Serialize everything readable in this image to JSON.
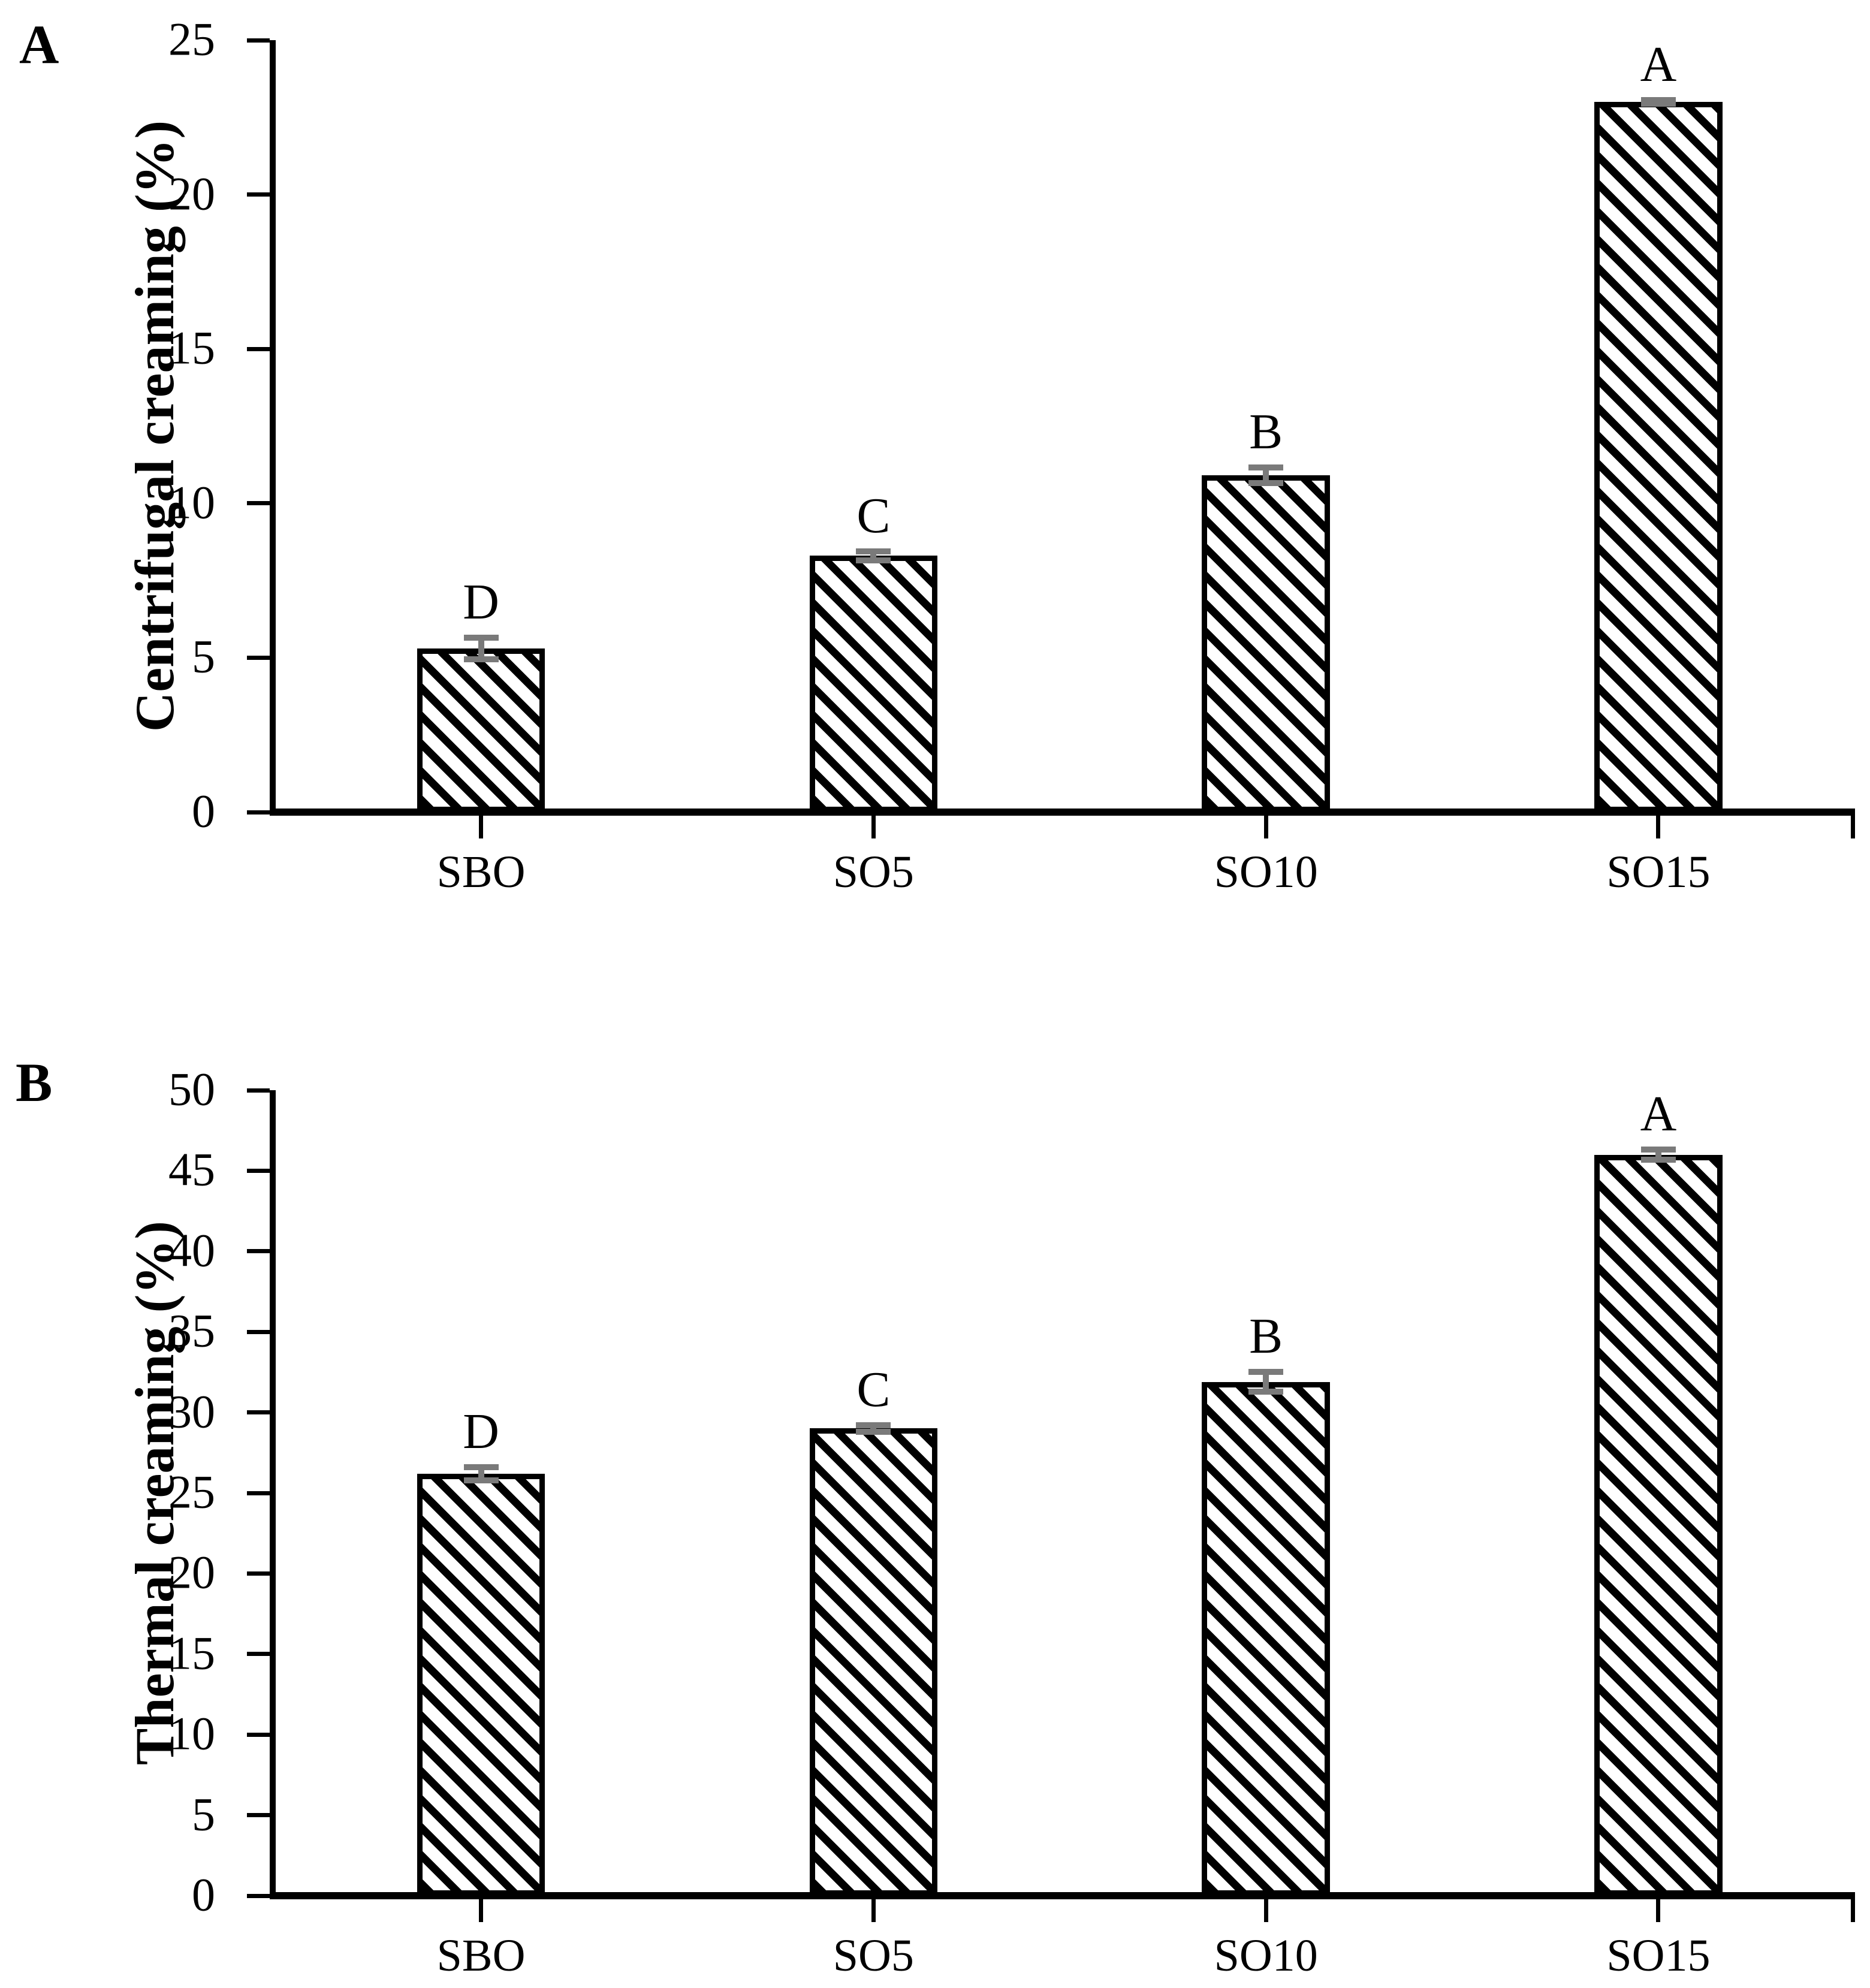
{
  "figure": {
    "background": "#ffffff",
    "panel_labels": [
      "A",
      "B"
    ]
  },
  "colors": {
    "axis": "#000000",
    "bar_outline": "#000000",
    "bar_hatch": "#000000",
    "error_bar": "#7a7a7a",
    "text": "#000000"
  },
  "chart_data": [
    {
      "type": "bar",
      "panel_label": "A",
      "title": "",
      "xlabel": "",
      "ylabel": "Centrifugal creaming (%)",
      "categories": [
        "SBO",
        "SO5",
        "SO10",
        "SO15"
      ],
      "values": [
        5.3,
        8.3,
        10.9,
        23.0
      ],
      "errors": [
        0.45,
        0.25,
        0.35,
        0.15
      ],
      "sig_letters": [
        "D",
        "C",
        "B",
        "A"
      ],
      "ylim": [
        0,
        25
      ],
      "ytick_step": 5,
      "yticks": [
        0,
        5,
        10,
        15,
        20,
        25
      ],
      "grid": false,
      "legend": "none",
      "bar_style": "diagonal-hatch"
    },
    {
      "type": "bar",
      "panel_label": "B",
      "title": "",
      "xlabel": "",
      "ylabel": "Thermal creaming (%)",
      "categories": [
        "SBO",
        "SO5",
        "SO10",
        "SO15"
      ],
      "values": [
        26.2,
        29.0,
        31.9,
        46.0
      ],
      "errors": [
        0.6,
        0.4,
        0.8,
        0.5
      ],
      "sig_letters": [
        "D",
        "C",
        "B",
        "A"
      ],
      "ylim": [
        0,
        50
      ],
      "ytick_step": 5,
      "yticks": [
        0,
        5,
        10,
        15,
        20,
        25,
        30,
        35,
        40,
        45,
        50
      ],
      "grid": false,
      "legend": "none",
      "bar_style": "diagonal-hatch"
    }
  ]
}
